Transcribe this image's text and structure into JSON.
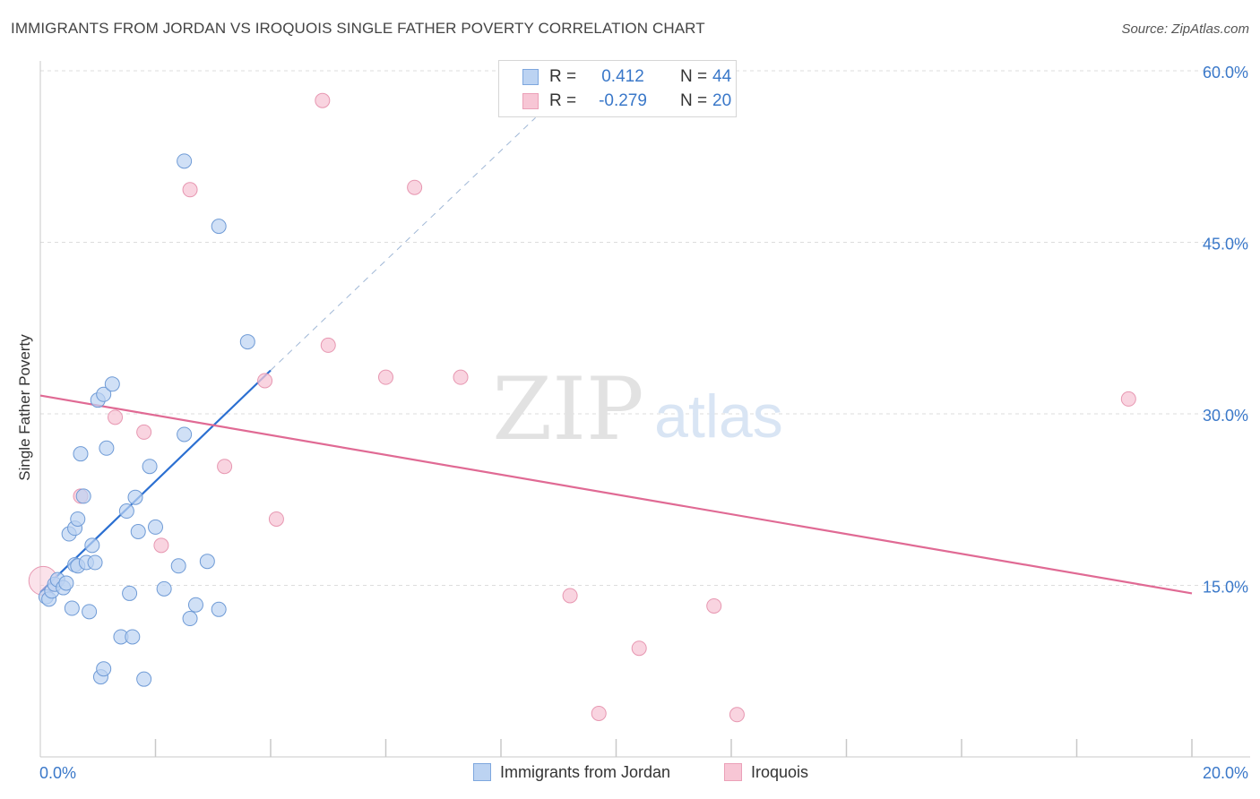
{
  "title": "IMMIGRANTS FROM JORDAN VS IROQUOIS SINGLE FATHER POVERTY CORRELATION CHART",
  "source": "Source: ZipAtlas.com",
  "watermark": {
    "zip": "ZIP",
    "atlas": "atlas"
  },
  "colors": {
    "blue": "#3a78c9",
    "blue_fill": "#bcd3f2",
    "blue_line": "#2b6fd1",
    "pink_fill": "#f7c6d5",
    "pink_line": "#e06a94",
    "grid": "#dddddd"
  },
  "legend": {
    "series1": {
      "r_label": "R =",
      "r_value": "0.412",
      "n_label": "N =",
      "n_value": "44"
    },
    "series2": {
      "r_label": "R =",
      "r_value": "-0.279",
      "n_label": "N =",
      "n_value": "20"
    }
  },
  "bottom_legend": {
    "series1": "Immigrants from Jordan",
    "series2": "Iroquois"
  },
  "chart_data": {
    "type": "scatter",
    "title": "IMMIGRANTS FROM JORDAN VS IROQUOIS SINGLE FATHER POVERTY CORRELATION CHART",
    "xlabel": "",
    "ylabel": "Single Father Poverty",
    "xlim": [
      0,
      20
    ],
    "ylim": [
      0,
      60
    ],
    "x_tick_labels": [
      "0.0%",
      "20.0%"
    ],
    "y_tick_values": [
      15,
      30,
      45,
      60
    ],
    "y_tick_labels": [
      "15.0%",
      "30.0%",
      "45.0%",
      "60.0%"
    ],
    "grid": true,
    "series": [
      {
        "name": "Immigrants from Jordan",
        "r": 0.412,
        "n": 44,
        "points": [
          [
            0.1,
            14.0
          ],
          [
            0.15,
            13.8
          ],
          [
            0.2,
            14.5
          ],
          [
            0.25,
            15.1
          ],
          [
            0.3,
            15.5
          ],
          [
            0.4,
            14.8
          ],
          [
            0.45,
            15.2
          ],
          [
            0.5,
            19.5
          ],
          [
            0.55,
            13.0
          ],
          [
            0.6,
            20.0
          ],
          [
            0.65,
            20.8
          ],
          [
            0.7,
            26.5
          ],
          [
            0.75,
            22.8
          ],
          [
            0.6,
            16.8
          ],
          [
            0.65,
            16.7
          ],
          [
            0.8,
            17.0
          ],
          [
            0.85,
            12.7
          ],
          [
            0.9,
            18.5
          ],
          [
            0.95,
            17.0
          ],
          [
            1.0,
            31.2
          ],
          [
            1.05,
            7.0
          ],
          [
            1.1,
            7.7
          ],
          [
            1.1,
            31.7
          ],
          [
            1.15,
            27.0
          ],
          [
            1.25,
            32.6
          ],
          [
            1.4,
            10.5
          ],
          [
            1.5,
            21.5
          ],
          [
            1.55,
            14.3
          ],
          [
            1.6,
            10.5
          ],
          [
            1.65,
            22.7
          ],
          [
            1.7,
            19.7
          ],
          [
            1.8,
            6.8
          ],
          [
            1.9,
            25.4
          ],
          [
            2.0,
            20.1
          ],
          [
            2.15,
            14.7
          ],
          [
            2.4,
            16.7
          ],
          [
            2.5,
            28.2
          ],
          [
            2.5,
            52.1
          ],
          [
            2.6,
            12.1
          ],
          [
            2.7,
            13.3
          ],
          [
            2.9,
            17.1
          ],
          [
            3.1,
            12.9
          ],
          [
            3.1,
            46.4
          ],
          [
            3.6,
            36.3
          ]
        ],
        "trend": {
          "x": [
            0.0,
            4.0
          ],
          "y": [
            14.4,
            33.8
          ],
          "extended_to": [
            8.6,
            55.9
          ]
        }
      },
      {
        "name": "Iroquois",
        "r": -0.279,
        "n": 20,
        "points": [
          [
            0.05,
            15.4
          ],
          [
            0.7,
            22.8
          ],
          [
            1.3,
            29.7
          ],
          [
            1.8,
            28.4
          ],
          [
            2.1,
            18.5
          ],
          [
            2.6,
            49.6
          ],
          [
            3.2,
            25.4
          ],
          [
            3.9,
            32.9
          ],
          [
            4.1,
            20.8
          ],
          [
            4.9,
            57.4
          ],
          [
            5.0,
            36.0
          ],
          [
            6.0,
            33.2
          ],
          [
            6.5,
            49.8
          ],
          [
            7.3,
            33.2
          ],
          [
            9.2,
            14.1
          ],
          [
            9.7,
            3.8
          ],
          [
            10.4,
            9.5
          ],
          [
            11.7,
            13.2
          ],
          [
            12.1,
            3.7
          ],
          [
            18.9,
            31.3
          ]
        ],
        "trend": {
          "x": [
            0.0,
            20.0
          ],
          "y": [
            31.6,
            14.3
          ]
        }
      }
    ]
  }
}
